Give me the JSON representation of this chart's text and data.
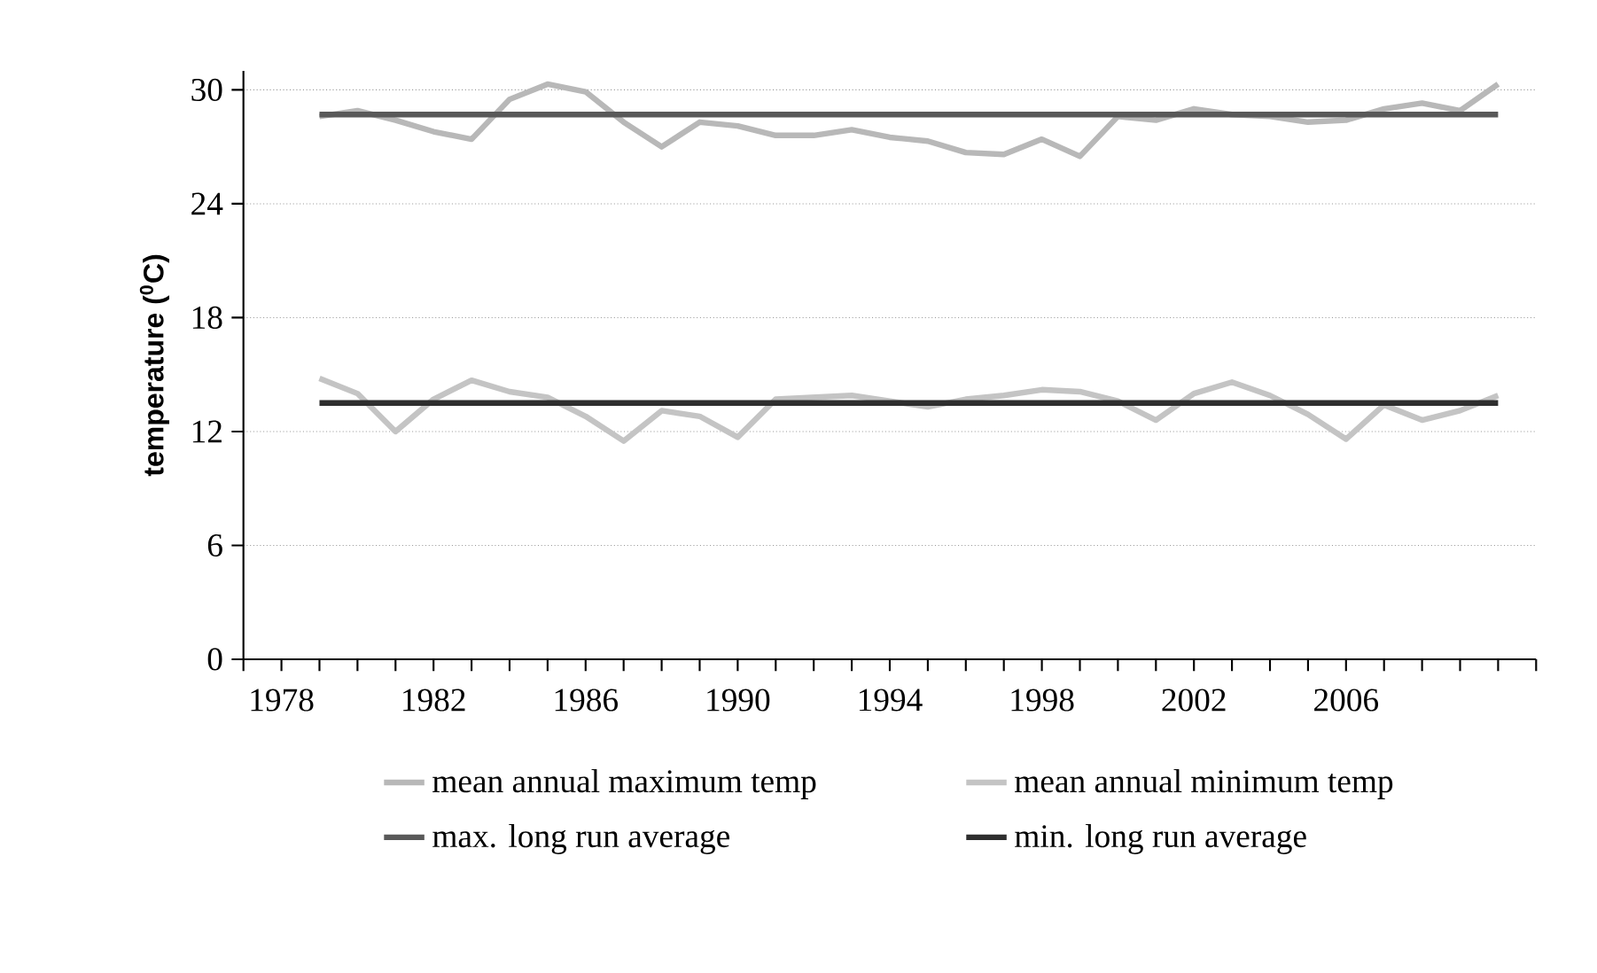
{
  "chart_data": {
    "type": "line",
    "ylabel": "temperature ($^{0}$C)",
    "x": [
      1979,
      1980,
      1981,
      1982,
      1983,
      1984,
      1985,
      1986,
      1987,
      1988,
      1989,
      1990,
      1991,
      1992,
      1993,
      1994,
      1995,
      1996,
      1997,
      1998,
      1999,
      2000,
      2001,
      2002,
      2003,
      2004,
      2005,
      2006,
      2007,
      2008,
      2009,
      2010
    ],
    "series": [
      {
        "name": "mean annual maximum temp",
        "color": "#b8b8b8",
        "values": [
          28.6,
          28.9,
          28.4,
          27.8,
          27.4,
          29.5,
          30.3,
          29.9,
          28.3,
          27.0,
          28.3,
          28.1,
          27.6,
          27.6,
          27.9,
          27.5,
          27.3,
          26.7,
          26.6,
          27.4,
          26.5,
          28.6,
          28.4,
          29.0,
          28.7,
          28.6,
          28.3,
          28.4,
          29.0,
          29.3,
          28.9,
          30.3
        ]
      },
      {
        "name": "mean annual minimum temp",
        "color": "#c4c4c4",
        "values": [
          14.8,
          14.0,
          12.0,
          13.7,
          14.7,
          14.1,
          13.8,
          12.8,
          11.5,
          13.1,
          12.8,
          11.7,
          13.7,
          13.8,
          13.9,
          13.6,
          13.3,
          13.7,
          13.9,
          14.2,
          14.1,
          13.6,
          12.6,
          14.0,
          14.6,
          13.9,
          12.9,
          11.6,
          13.4,
          12.6,
          13.1,
          13.9
        ]
      },
      {
        "name": "max. long run average",
        "color": "#595959",
        "values": [
          28.7,
          28.7,
          28.7,
          28.7,
          28.7,
          28.7,
          28.7,
          28.7,
          28.7,
          28.7,
          28.7,
          28.7,
          28.7,
          28.7,
          28.7,
          28.7,
          28.7,
          28.7,
          28.7,
          28.7,
          28.7,
          28.7,
          28.7,
          28.7,
          28.7,
          28.7,
          28.7,
          28.7,
          28.7,
          28.7,
          28.7,
          28.7
        ]
      },
      {
        "name": "min. long run average",
        "color": "#2e2e2e",
        "values": [
          13.5,
          13.5,
          13.5,
          13.5,
          13.5,
          13.5,
          13.5,
          13.5,
          13.5,
          13.5,
          13.5,
          13.5,
          13.5,
          13.5,
          13.5,
          13.5,
          13.5,
          13.5,
          13.5,
          13.5,
          13.5,
          13.5,
          13.5,
          13.5,
          13.5,
          13.5,
          13.5,
          13.5,
          13.5,
          13.5,
          13.5,
          13.5
        ]
      }
    ],
    "xlim": [
      1977,
      2011
    ],
    "xticks": [
      {
        "value": 1977,
        "label": null
      },
      1978,
      {
        "value": 1979,
        "label": null
      },
      {
        "value": 1980,
        "label": null
      },
      {
        "value": 1981,
        "label": null
      },
      1982,
      {
        "value": 1983,
        "label": null
      },
      {
        "value": 1984,
        "label": null
      },
      {
        "value": 1985,
        "label": null
      },
      1986,
      {
        "value": 1987,
        "label": null
      },
      {
        "value": 1988,
        "label": null
      },
      {
        "value": 1989,
        "label": null
      },
      1990,
      {
        "value": 1991,
        "label": null
      },
      {
        "value": 1992,
        "label": null
      },
      {
        "value": 1993,
        "label": null
      },
      1994,
      {
        "value": 1995,
        "label": null
      },
      {
        "value": 1996,
        "label": null
      },
      {
        "value": 1997,
        "label": null
      },
      1998,
      {
        "value": 1999,
        "label": null
      },
      {
        "value": 2000,
        "label": null
      },
      {
        "value": 2001,
        "label": null
      },
      2002,
      {
        "value": 2003,
        "label": null
      },
      {
        "value": 2004,
        "label": null
      },
      {
        "value": 2005,
        "label": null
      },
      2006,
      {
        "value": 2007,
        "label": null
      },
      {
        "value": 2008,
        "label": null
      },
      {
        "value": 2009,
        "label": null
      },
      {
        "value": 2010,
        "label": null
      },
      {
        "value": 2011,
        "label": null
      }
    ],
    "ylim": [
      0,
      31
    ],
    "yticks": [
      0,
      6,
      12,
      18,
      24,
      30
    ],
    "grid": "y",
    "legend": "bottom",
    "marker": "none",
    "line_style": "solid"
  }
}
